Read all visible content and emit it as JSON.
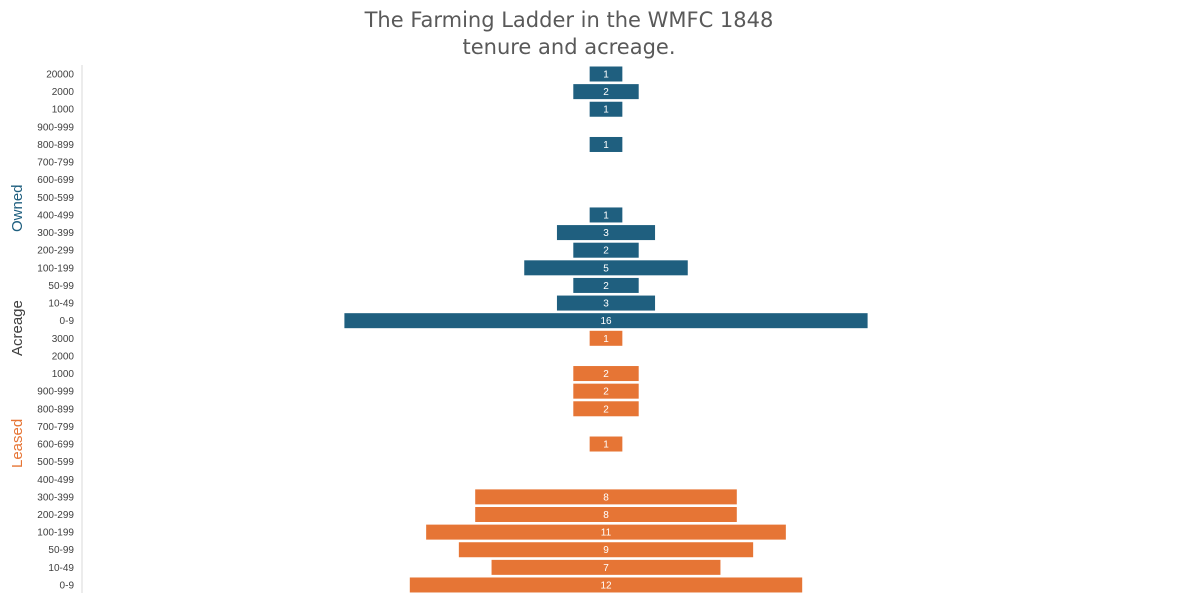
{
  "chart_data": {
    "type": "bar",
    "orientation": "horizontal",
    "layout": "centered funnel",
    "title_lines": [
      "The Farming  Ladder in the WMFC 1848",
      "tenure and acreage."
    ],
    "ylabel": "Acreage",
    "grid": false,
    "categories": [
      "20000",
      "2000",
      "1000",
      "900-999",
      "800-899",
      "700-799",
      "600-699",
      "500-599",
      "400-499",
      "300-399",
      "200-299",
      "100-199",
      "50-99",
      "10-49",
      "0-9",
      "3000",
      "2000",
      "1000",
      "900-999",
      "800-899",
      "700-799",
      "600-699",
      "500-599",
      "400-499",
      "300-399",
      "200-299",
      "100-199",
      "50-99",
      "10-49",
      "0-9"
    ],
    "series": [
      {
        "name": "Owned",
        "color": "#1f5f7f",
        "values": [
          1,
          2,
          1,
          null,
          1,
          null,
          null,
          null,
          1,
          3,
          2,
          5,
          2,
          3,
          16,
          null,
          null,
          null,
          null,
          null,
          null,
          null,
          null,
          null,
          null,
          null,
          null,
          null,
          null,
          null
        ]
      },
      {
        "name": "Leased",
        "color": "#e67535",
        "values": [
          null,
          null,
          null,
          null,
          null,
          null,
          null,
          null,
          null,
          null,
          null,
          null,
          null,
          null,
          null,
          1,
          null,
          2,
          2,
          2,
          null,
          1,
          null,
          null,
          8,
          8,
          11,
          9,
          7,
          12
        ]
      }
    ]
  }
}
